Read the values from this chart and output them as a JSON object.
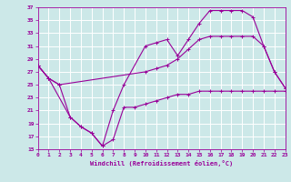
{
  "xlabel": "Windchill (Refroidissement éolien,°C)",
  "bg_color": "#cce8e8",
  "grid_color": "#ffffff",
  "line_color": "#990099",
  "xmin": 0,
  "xmax": 23,
  "ymin": 15,
  "ymax": 37,
  "yticks": [
    15,
    17,
    19,
    21,
    23,
    25,
    27,
    29,
    31,
    33,
    35,
    37
  ],
  "xticks": [
    0,
    1,
    2,
    3,
    4,
    5,
    6,
    7,
    8,
    9,
    10,
    11,
    12,
    13,
    14,
    15,
    16,
    17,
    18,
    19,
    20,
    21,
    22,
    23
  ],
  "line1_x": [
    0,
    1,
    2,
    10,
    11,
    12,
    13,
    14,
    15,
    16,
    17,
    18,
    19,
    20,
    21,
    22,
    23
  ],
  "line1_y": [
    28,
    26,
    25,
    27,
    27.5,
    28,
    29,
    30.5,
    32,
    32.5,
    32.5,
    32.5,
    32.5,
    32.5,
    31,
    27,
    24.5
  ],
  "line2_x": [
    0,
    1,
    3,
    4,
    5,
    6,
    7,
    8,
    10,
    11,
    12,
    13,
    14,
    15,
    16,
    17,
    18,
    19,
    20,
    21,
    22,
    23
  ],
  "line2_y": [
    28,
    26,
    20,
    18.5,
    17.5,
    15.5,
    21,
    25,
    31,
    31.5,
    32,
    29.5,
    32,
    34.5,
    36.5,
    36.5,
    36.5,
    36.5,
    35.5,
    31,
    27,
    24.5
  ],
  "line3_x": [
    0,
    1,
    2,
    3,
    4,
    5,
    6,
    7,
    8,
    9,
    10,
    11,
    12,
    13,
    14,
    15,
    16,
    17,
    18,
    19,
    20,
    21,
    22,
    23
  ],
  "line3_y": [
    28,
    26,
    25,
    20,
    18.5,
    17.5,
    15.5,
    16.5,
    21.5,
    21.5,
    22,
    22.5,
    23,
    23.5,
    23.5,
    24,
    24,
    24,
    24,
    24,
    24,
    24,
    24,
    24
  ]
}
